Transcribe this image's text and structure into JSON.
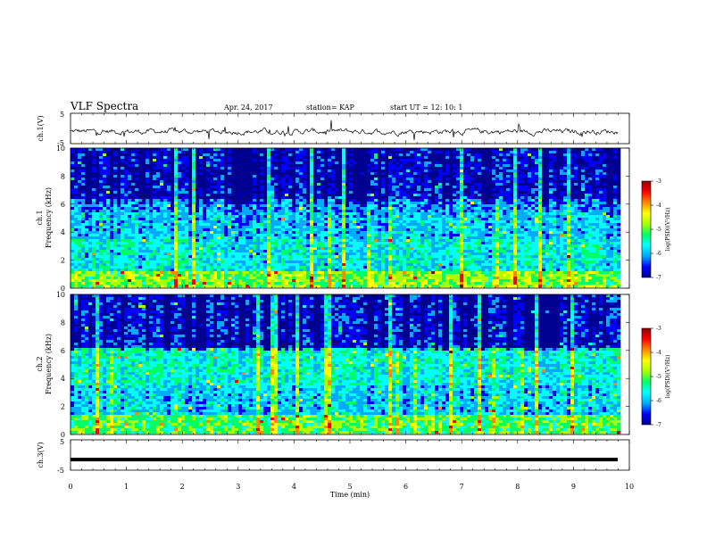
{
  "header": {
    "title": "VLF Spectra",
    "date": "Apr. 24, 2017",
    "station": "station= KAP",
    "start": "start  UT  =    12: 10: 1"
  },
  "chart_data": [
    {
      "type": "line",
      "ylabel": "ch.1(V)",
      "ylim": [
        -5,
        5
      ],
      "yticks": [
        "5",
        "-5"
      ],
      "xlim": [
        0,
        10
      ],
      "description": "noisy voltage trace around -1 V with spikes"
    },
    {
      "type": "heatmap",
      "ylabel_top": "ch.1",
      "ylabel": "Frequency (kHz)",
      "ylim": [
        0,
        10
      ],
      "yticks": [
        "0",
        "2",
        "4",
        "6",
        "8",
        "10"
      ],
      "xlim": [
        0,
        10
      ],
      "colorbar": {
        "label": "log(PSD)(V²/Hz)",
        "ticks": [
          "-3",
          "-4",
          "-5",
          "-6",
          "-7"
        ],
        "range": [
          -7,
          -3
        ],
        "colors": [
          "#000090",
          "#0000ff",
          "#00aaff",
          "#00ffff",
          "#00ff66",
          "#aaff00",
          "#ffff00",
          "#ff8800",
          "#ff0000",
          "#900000"
        ]
      }
    },
    {
      "type": "heatmap",
      "ylabel_top": "ch.2",
      "ylabel": "Frequency (kHz)",
      "ylim": [
        0,
        10
      ],
      "yticks": [
        "0",
        "2",
        "4",
        "6",
        "8",
        "10"
      ],
      "xlim": [
        0,
        10
      ],
      "colorbar": {
        "label": "log(PSD)(V²/Hz)",
        "ticks": [
          "-3",
          "-4",
          "-5",
          "-6",
          "-7"
        ],
        "range": [
          -7,
          -3
        ]
      }
    },
    {
      "type": "line",
      "ylabel": "ch.3(V)",
      "ylim": [
        -5,
        5
      ],
      "yticks": [
        "5",
        "-5"
      ],
      "xlim": [
        0,
        10
      ],
      "description": "flat trace at about -1.5 V"
    }
  ],
  "xaxis": {
    "label": "Time (min)",
    "ticks": [
      "0",
      "1",
      "2",
      "3",
      "4",
      "5",
      "6",
      "7",
      "8",
      "9",
      "10"
    ]
  }
}
